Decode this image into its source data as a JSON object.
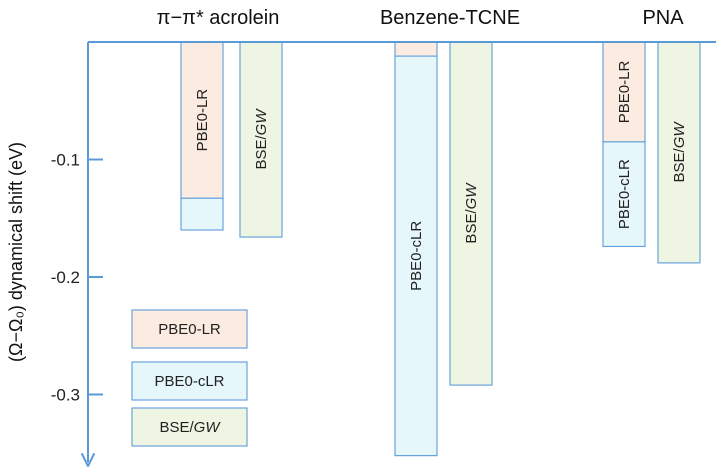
{
  "chart_data": {
    "type": "bar",
    "title": "",
    "xlabel": "",
    "ylabel": "(Ω−Ω₀) dynamical shift (eV)",
    "ylim": [
      -0.35,
      0
    ],
    "yticks": [
      -0.1,
      -0.2,
      -0.3
    ],
    "ytick_labels": [
      "-0.1",
      "-0.2",
      "-0.3"
    ],
    "grid": false,
    "categories": [
      "π−π* acrolein",
      "Benzene-TCNE",
      "PNA"
    ],
    "groups": [
      {
        "name": "π−π* acrolein",
        "bars": [
          {
            "label_plain": "PBE0-LR",
            "label_italic": "",
            "segments": [
              {
                "method": "PBE0-LR",
                "value": -0.133
              },
              {
                "method": "PBE0-cLR",
                "value": -0.16
              }
            ]
          },
          {
            "label_plain": "BSE/",
            "label_italic": "GW",
            "segments": [
              {
                "method": "BSE/GW",
                "value": -0.166
              }
            ]
          }
        ]
      },
      {
        "name": "Benzene-TCNE",
        "bars": [
          {
            "label_plain": "PBE0-cLR",
            "label_italic": "",
            "segments": [
              {
                "method": "PBE0-LR",
                "value": -0.012
              },
              {
                "method": "PBE0-cLR",
                "value": -0.352
              }
            ]
          },
          {
            "label_plain": "BSE/",
            "label_italic": "GW",
            "segments": [
              {
                "method": "BSE/GW",
                "value": -0.292
              }
            ]
          }
        ]
      },
      {
        "name": "PNA",
        "bars": [
          {
            "label_plain": "PBE0-LR",
            "label_italic": "",
            "label2_plain": "PBE0-cLR",
            "segments": [
              {
                "method": "PBE0-LR",
                "value": -0.085
              },
              {
                "method": "PBE0-cLR",
                "value": -0.174
              }
            ]
          },
          {
            "label_plain": "BSE/",
            "label_italic": "GW",
            "segments": [
              {
                "method": "BSE/GW",
                "value": -0.188
              }
            ]
          }
        ]
      }
    ],
    "legend": {
      "placement": "bottom-left",
      "entries": [
        {
          "method": "PBE0-LR",
          "label_plain": "PBE0-LR",
          "label_italic": "",
          "color": "#fcebe0"
        },
        {
          "method": "PBE0-cLR",
          "label_plain": "PBE0-cLR",
          "label_italic": "",
          "color": "#e6f7fc"
        },
        {
          "method": "BSE/GW",
          "label_plain": "BSE/",
          "label_italic": "GW",
          "color": "#eef6e3"
        }
      ]
    },
    "colors": {
      "PBE0-LR": "#fcebe0",
      "PBE0-cLR": "#e6f7fc",
      "BSE/GW": "#eef6e3",
      "axis": "#5b9bd5",
      "bar_edge": "#6aa3dc"
    }
  }
}
